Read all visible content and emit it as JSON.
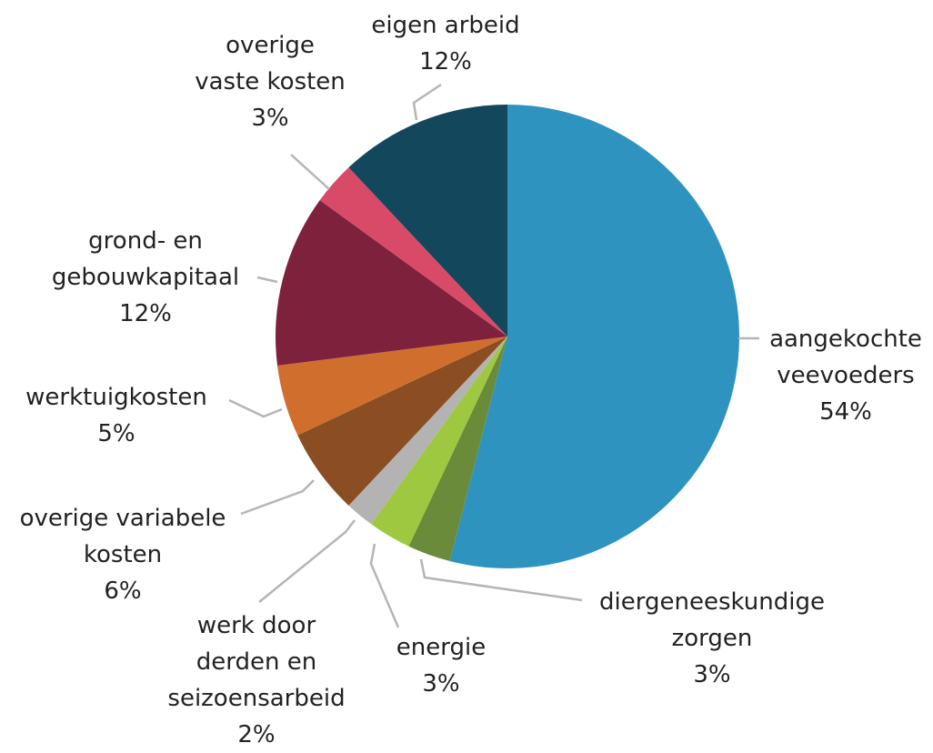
{
  "chart_data": {
    "type": "pie",
    "categories": [
      "aangekochte\nveevoeders",
      "diergeneeskundige\nzorgen",
      "energie",
      "werk door\nderden en\nseizoensarbeid",
      "overige variabele\nkosten",
      "werktuigkosten",
      "grond- en\ngebouwkapitaal",
      "overige\nvaste kosten",
      "eigen arbeid"
    ],
    "values": [
      54,
      3,
      3,
      2,
      6,
      5,
      12,
      3,
      12
    ],
    "value_labels": [
      "54%",
      "3%",
      "3%",
      "2%",
      "6%",
      "5%",
      "12%",
      "3%",
      "12%"
    ],
    "colors": [
      "#2e93bf",
      "#6a8c3a",
      "#9dc83f",
      "#b3b3b3",
      "#8a4e22",
      "#d06e2e",
      "#7e213c",
      "#d84a68",
      "#13475c"
    ]
  }
}
